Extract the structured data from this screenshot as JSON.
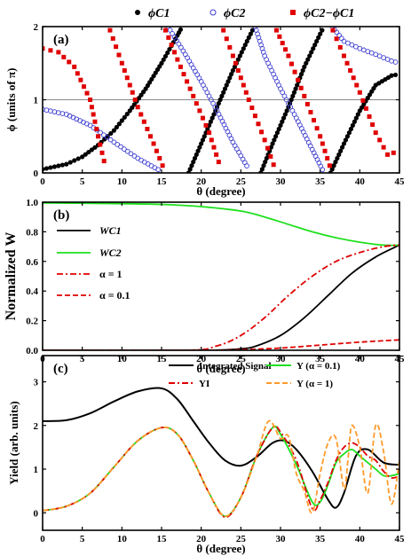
{
  "chart_data": [
    {
      "type": "scatter",
      "panel_label": "(a)",
      "xlabel": "θ (degree)",
      "ylabel": "ϕ (units of π)",
      "xlim": [
        0,
        45
      ],
      "ylim": [
        0,
        2
      ],
      "xticks": [
        "0",
        "5",
        "10",
        "15",
        "20",
        "25",
        "30",
        "35",
        "40",
        "45"
      ],
      "yticks": [
        "0",
        "1",
        "2"
      ],
      "legend_position": "top-outside",
      "reference_line_y": 1,
      "series": [
        {
          "name": "ϕC1",
          "marker": "black sphere",
          "color": "#000000",
          "segments": [
            [
              [
                0,
                0.05
              ],
              [
                3,
                0.12
              ],
              [
                5,
                0.22
              ],
              [
                7,
                0.38
              ],
              [
                9,
                0.58
              ],
              [
                11,
                0.85
              ],
              [
                13,
                1.15
              ],
              [
                15,
                1.5
              ],
              [
                17,
                1.88
              ],
              [
                17.6,
                2.0
              ]
            ],
            [
              [
                18.4,
                0
              ],
              [
                20,
                0.4
              ],
              [
                22,
                0.9
              ],
              [
                24,
                1.4
              ],
              [
                26,
                1.85
              ],
              [
                26.7,
                2.0
              ]
            ],
            [
              [
                27.5,
                0
              ],
              [
                29,
                0.4
              ],
              [
                31,
                0.9
              ],
              [
                33,
                1.45
              ],
              [
                35,
                1.9
              ],
              [
                35.5,
                2.0
              ]
            ],
            [
              [
                36.3,
                0
              ],
              [
                38,
                0.4
              ],
              [
                40,
                0.85
              ],
              [
                42,
                1.2
              ],
              [
                44,
                1.33
              ],
              [
                45,
                1.35
              ]
            ]
          ]
        },
        {
          "name": "ϕC2",
          "marker": "open circle",
          "color": "#3a3ad0",
          "segments": [
            [
              [
                0,
                0.87
              ],
              [
                3,
                0.8
              ],
              [
                6,
                0.65
              ],
              [
                9,
                0.42
              ],
              [
                12,
                0.2
              ],
              [
                15,
                0.02
              ]
            ],
            [
              [
                15.8,
                2.0
              ],
              [
                18,
                1.62
              ],
              [
                20,
                1.25
              ],
              [
                22,
                0.85
              ],
              [
                24,
                0.42
              ],
              [
                26,
                0.05
              ]
            ],
            [
              [
                26.8,
                2.0
              ],
              [
                28,
                1.6
              ],
              [
                30,
                1.15
              ],
              [
                32,
                0.75
              ],
              [
                34,
                0.32
              ],
              [
                35.5,
                0
              ]
            ],
            [
              [
                36.5,
                2.0
              ],
              [
                38,
                1.8
              ],
              [
                40,
                1.7
              ],
              [
                42,
                1.62
              ],
              [
                44,
                1.53
              ],
              [
                45,
                1.5
              ]
            ]
          ]
        },
        {
          "name": "ϕC2−ϕC1",
          "marker": "filled square",
          "color": "#e00000",
          "segments": [
            [
              [
                0,
                1.7
              ],
              [
                2,
                1.65
              ],
              [
                4,
                1.45
              ],
              [
                6,
                1.0
              ],
              [
                7,
                0.5
              ],
              [
                8,
                0.05
              ]
            ],
            [
              [
                8.5,
                1.95
              ],
              [
                10,
                1.5
              ],
              [
                12,
                0.9
              ],
              [
                14,
                0.4
              ],
              [
                15.5,
                0.0
              ]
            ],
            [
              [
                15.5,
                1.95
              ],
              [
                17,
                1.55
              ],
              [
                19,
                1.05
              ],
              [
                21,
                0.55
              ],
              [
                22.5,
                0.05
              ]
            ],
            [
              [
                22.8,
                1.95
              ],
              [
                24,
                1.6
              ],
              [
                26,
                1.0
              ],
              [
                28,
                0.45
              ],
              [
                29.5,
                0.0
              ]
            ],
            [
              [
                29.5,
                1.95
              ],
              [
                31,
                1.6
              ],
              [
                33,
                1.05
              ],
              [
                35,
                0.5
              ],
              [
                36.5,
                0.0
              ]
            ],
            [
              [
                36.6,
                1.95
              ],
              [
                38,
                1.6
              ],
              [
                40,
                1.1
              ],
              [
                42,
                0.55
              ],
              [
                43.5,
                0.25
              ],
              [
                45,
                0.3
              ]
            ]
          ]
        }
      ]
    },
    {
      "type": "line",
      "panel_label": "(b)",
      "xlabel": "θ (degree)",
      "ylabel": "Normalized W",
      "xlim": [
        0,
        45
      ],
      "ylim": [
        0,
        1.0
      ],
      "xticks": [
        "0",
        "5",
        "10",
        "15",
        "20",
        "25",
        "30",
        "35",
        "40",
        "45"
      ],
      "yticks": [
        "0.0",
        "0.2",
        "0.4",
        "0.6",
        "0.8",
        "1.0"
      ],
      "legend_position": "left",
      "series": [
        {
          "name": "WC1",
          "color": "#000000",
          "dash": "solid",
          "x": [
            0,
            20,
            25,
            27,
            30,
            33,
            36,
            39,
            42,
            45
          ],
          "y": [
            0,
            0,
            0.01,
            0.03,
            0.1,
            0.22,
            0.37,
            0.52,
            0.63,
            0.71
          ]
        },
        {
          "name": "WC2",
          "color": "#1ee01e",
          "dash": "solid",
          "x": [
            0,
            10,
            15,
            20,
            25,
            28,
            31,
            34,
            37,
            40,
            43,
            45
          ],
          "y": [
            0.995,
            0.99,
            0.985,
            0.97,
            0.94,
            0.9,
            0.85,
            0.8,
            0.76,
            0.73,
            0.71,
            0.71
          ]
        },
        {
          "name": "α = 1",
          "color": "#e00000",
          "dash": "dashdot",
          "x": [
            0,
            18,
            22,
            25,
            28,
            31,
            34,
            37,
            40,
            43,
            45
          ],
          "y": [
            0,
            0,
            0.03,
            0.1,
            0.22,
            0.37,
            0.5,
            0.6,
            0.66,
            0.7,
            0.71
          ]
        },
        {
          "name": "α = 0.1",
          "color": "#e00000",
          "dash": "dash",
          "x": [
            0,
            20,
            25,
            30,
            35,
            40,
            45
          ],
          "y": [
            0,
            0,
            0.004,
            0.015,
            0.035,
            0.055,
            0.07
          ]
        }
      ]
    },
    {
      "type": "line",
      "panel_label": "(c)",
      "xlabel": "θ (degree)",
      "ylabel": "Yield (arb. units)",
      "xlim": [
        0,
        45
      ],
      "ylim": [
        -0.4,
        3.6
      ],
      "xticks": [
        "0",
        "5",
        "10",
        "15",
        "20",
        "25",
        "30",
        "35",
        "40",
        "45"
      ],
      "yticks": [
        "0",
        "1",
        "2",
        "3"
      ],
      "legend_position": "top",
      "series": [
        {
          "name": "Integrated Signal",
          "color": "#000000",
          "dash": "solid",
          "x": [
            0,
            3,
            6,
            9,
            12,
            15,
            17,
            19,
            21,
            23,
            25,
            27,
            29,
            30.5,
            32,
            34,
            36,
            37,
            38,
            39.5,
            41,
            43,
            45
          ],
          "y": [
            2.1,
            2.12,
            2.28,
            2.55,
            2.78,
            2.85,
            2.6,
            2.1,
            1.6,
            1.2,
            1.08,
            1.28,
            1.6,
            1.65,
            1.45,
            0.95,
            0.3,
            0.12,
            0.45,
            1.3,
            1.45,
            1.15,
            1.1
          ]
        },
        {
          "name": "Y (α = 0.1)",
          "color": "#1ee01e",
          "dash": "solid",
          "x": [
            0,
            3,
            6,
            9,
            12,
            15,
            17,
            19,
            21,
            23,
            25,
            27,
            29,
            30,
            32,
            34,
            35,
            36,
            37,
            38,
            39,
            40,
            41,
            42,
            43,
            44,
            45
          ],
          "y": [
            0.05,
            0.15,
            0.45,
            1.05,
            1.65,
            1.95,
            1.8,
            1.2,
            0.45,
            -0.08,
            0.35,
            1.3,
            1.95,
            1.8,
            1.1,
            0.25,
            0.25,
            0.65,
            1.15,
            1.35,
            1.45,
            1.3,
            1.15,
            1.0,
            0.85,
            0.85,
            0.9
          ]
        },
        {
          "name": "YI",
          "color": "#e00000",
          "dash": "dashdot",
          "x": [
            0,
            3,
            6,
            9,
            12,
            15,
            17,
            19,
            21,
            23,
            25,
            27,
            29,
            30,
            32,
            34,
            35,
            36,
            37,
            38,
            39,
            40,
            41,
            42,
            43,
            44,
            45
          ],
          "y": [
            0.05,
            0.15,
            0.45,
            1.05,
            1.65,
            1.95,
            1.8,
            1.2,
            0.45,
            -0.1,
            0.35,
            1.3,
            1.95,
            1.85,
            1.2,
            0.1,
            0.3,
            0.7,
            1.2,
            1.5,
            1.6,
            1.5,
            1.3,
            1.2,
            0.95,
            0.8,
            0.85
          ]
        },
        {
          "name": "Y (α = 1)",
          "color": "#ff9a2a",
          "dash": "dash",
          "x": [
            0,
            3,
            6,
            9,
            12,
            15,
            17,
            19,
            21,
            23,
            25,
            27,
            28.5,
            30,
            31,
            32,
            33,
            34,
            35,
            36,
            37,
            38,
            38.5,
            39,
            40,
            41,
            42,
            43,
            44,
            45
          ],
          "y": [
            0.05,
            0.15,
            0.45,
            1.05,
            1.65,
            1.95,
            1.8,
            1.2,
            0.45,
            -0.08,
            0.35,
            1.3,
            2.1,
            1.7,
            1.75,
            0.9,
            0.5,
            0.0,
            0.9,
            1.6,
            1.7,
            0.55,
            1.2,
            2.0,
            1.5,
            0.45,
            2.0,
            1.4,
            0.2,
            1.2
          ]
        }
      ]
    }
  ]
}
